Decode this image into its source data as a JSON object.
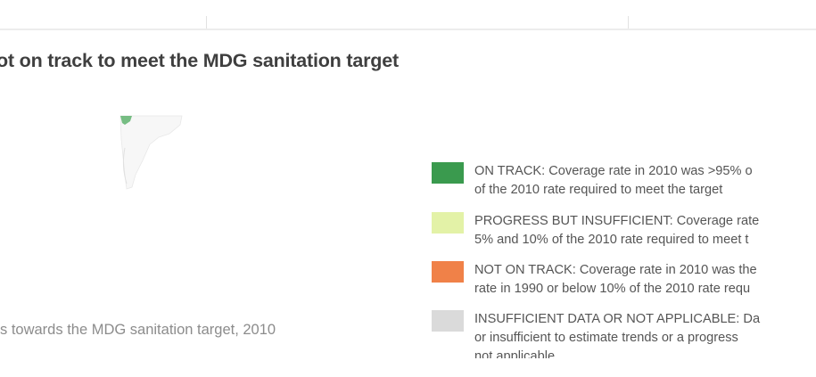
{
  "title": "ot on track to meet the MDG sanitation target",
  "caption": "s towards the MDG sanitation target, 2010",
  "legend": [
    {
      "color": "#3a9a4e",
      "line1": "ON TRACK: Coverage rate in 2010 was >95% o",
      "line2": "of the 2010 rate required to meet the target"
    },
    {
      "color": "#e3f2a7",
      "line1": "PROGRESS BUT INSUFFICIENT: Coverage rate",
      "line2": "5% and 10% of the 2010 rate required to meet t"
    },
    {
      "color": "#f08148",
      "line1": "NOT ON TRACK: Coverage rate in 2010 was the",
      "line2": "rate in 1990 or below 10% of the 2010 rate requ"
    },
    {
      "color": "#dadada",
      "line1": "INSUFFICIENT DATA OR NOT APPLICABLE: Da",
      "line2": "or insufficient to estimate trends or a progress",
      "line3": "not applicable"
    }
  ],
  "map_colors": {
    "land": "#f7f7f7",
    "coastline": "#e8e8e8",
    "on_track": "#5fb36f"
  }
}
